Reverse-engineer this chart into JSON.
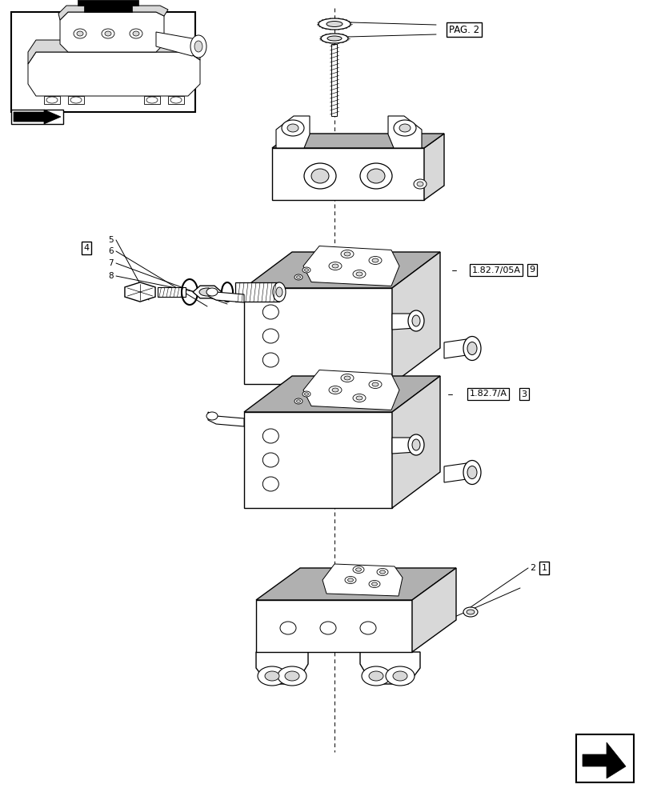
{
  "bg_color": "#ffffff",
  "lc": "#000000",
  "lg": "#d8d8d8",
  "mg": "#b0b0b0",
  "dg": "#808080",
  "figsize": [
    8.12,
    10.0
  ],
  "dpi": 100,
  "labels": {
    "pag2": "PAG. 2",
    "ref1": "1.82.7/05A",
    "ref2": "1.82.7/A",
    "n9": "9",
    "n3": "3",
    "n2": "2",
    "n1": "1",
    "n4": "4",
    "n5": "5",
    "n6": "6",
    "n7": "7",
    "n8": "8"
  }
}
